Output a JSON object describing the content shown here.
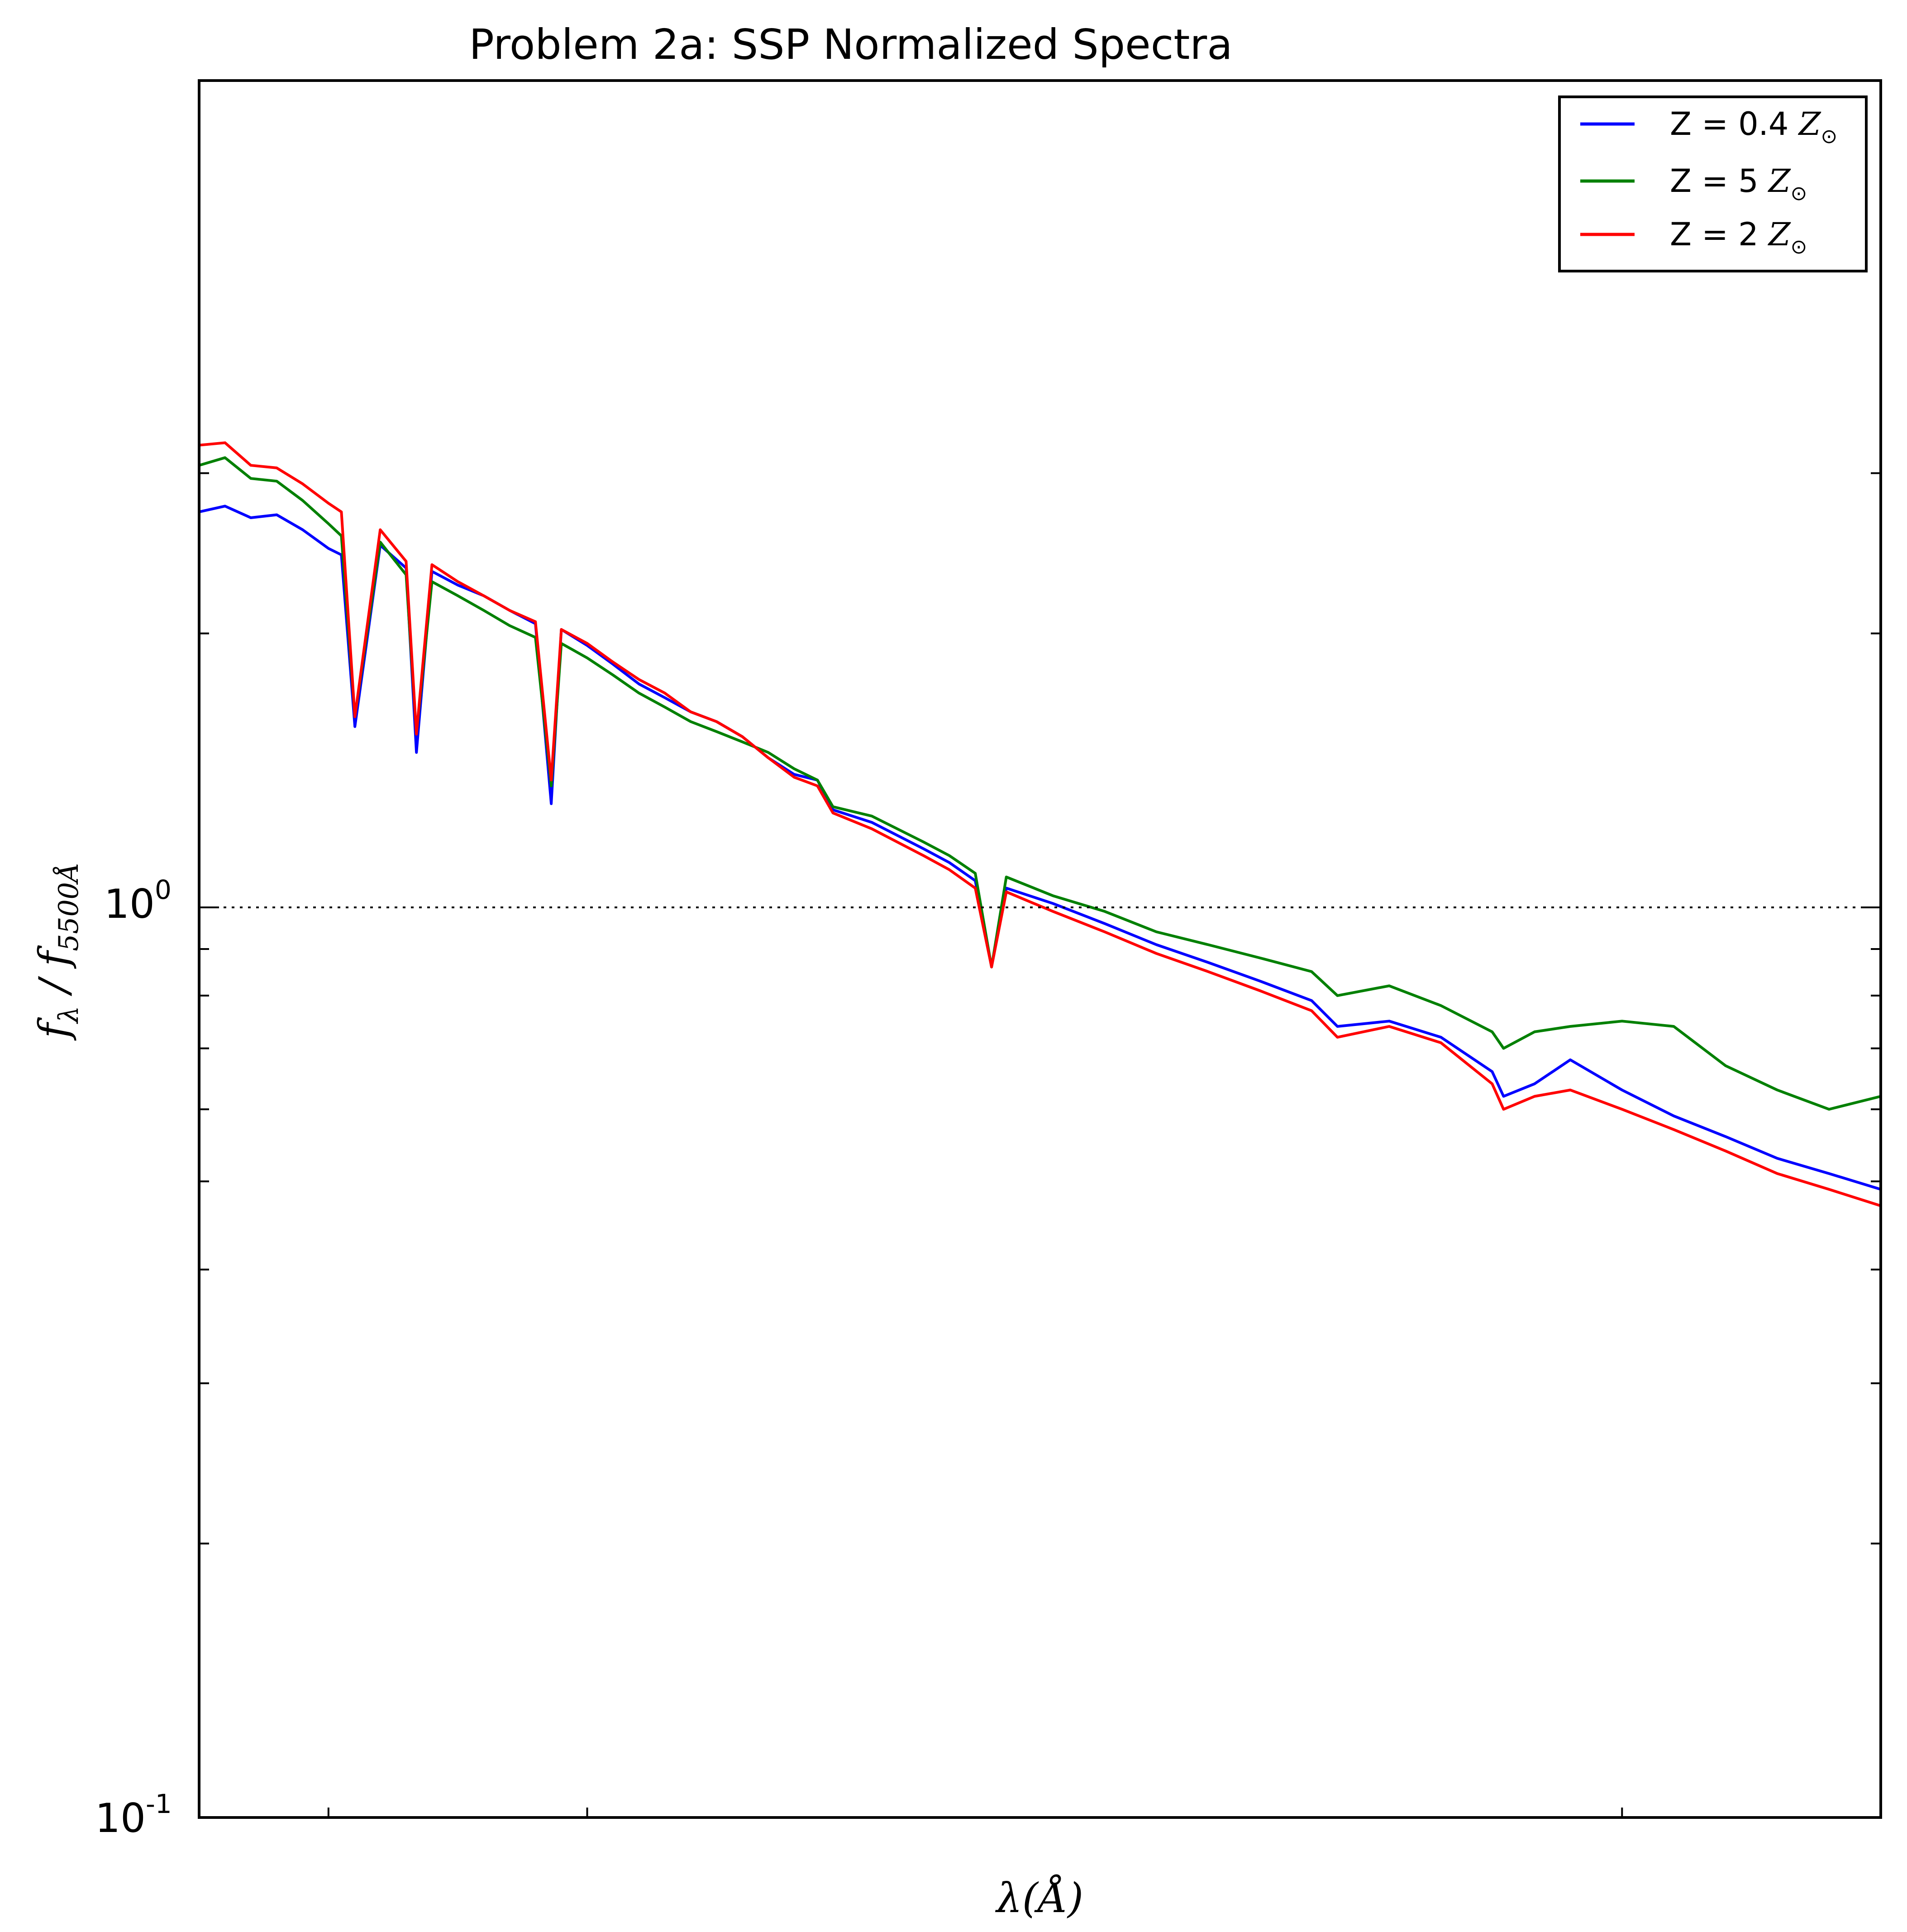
{
  "chart_data": {
    "type": "line",
    "title": "Problem 2a: SSP Normalized Spectra",
    "xlabel": "λ(Å)",
    "ylabel": "f_λ / f_5500Å",
    "ylabel_main": "f",
    "ylabel_sub1": "λ",
    "ylabel_sep": " / f",
    "ylabel_sub2": "5500Å",
    "y_scale": "log",
    "ylim": [
      0.1,
      3.9
    ],
    "xlim": [
      3500,
      10000
    ],
    "y_tick_labels": [
      {
        "value": 1.0,
        "base": "10",
        "exp": "0"
      },
      {
        "value": 0.1,
        "base": "10",
        "exp": "-1"
      }
    ],
    "x_tick_labels": [],
    "reference_line": {
      "y": 1.0,
      "style": "dotted"
    },
    "grid": false,
    "legend_position": "top-right",
    "series": [
      {
        "name": "Z = 0.4 Z⊙",
        "name_prefix": "Z = 0.4 ",
        "name_math": "Z",
        "name_sub": "⊙",
        "color": "#0000ff",
        "points": [
          [
            3500,
            2.72
          ],
          [
            3600,
            2.76
          ],
          [
            3700,
            2.68
          ],
          [
            3800,
            2.7
          ],
          [
            3900,
            2.6
          ],
          [
            4000,
            2.48
          ],
          [
            4050,
            2.44
          ],
          [
            4102,
            1.58
          ],
          [
            4200,
            2.5
          ],
          [
            4300,
            2.36
          ],
          [
            4340,
            1.48
          ],
          [
            4400,
            2.34
          ],
          [
            4500,
            2.26
          ],
          [
            4600,
            2.2
          ],
          [
            4700,
            2.12
          ],
          [
            4800,
            2.05
          ],
          [
            4861,
            1.3
          ],
          [
            4900,
            2.02
          ],
          [
            5000,
            1.94
          ],
          [
            5100,
            1.85
          ],
          [
            5200,
            1.76
          ],
          [
            5300,
            1.7
          ],
          [
            5400,
            1.64
          ],
          [
            5500,
            1.6
          ],
          [
            5600,
            1.54
          ],
          [
            5700,
            1.46
          ],
          [
            5800,
            1.4
          ],
          [
            5890,
            1.38
          ],
          [
            5950,
            1.28
          ],
          [
            6100,
            1.24
          ],
          [
            6300,
            1.16
          ],
          [
            6400,
            1.12
          ],
          [
            6500,
            1.07
          ],
          [
            6563,
            0.86
          ],
          [
            6620,
            1.05
          ],
          [
            6800,
            1.01
          ],
          [
            7000,
            0.96
          ],
          [
            7200,
            0.91
          ],
          [
            7400,
            0.87
          ],
          [
            7600,
            0.83
          ],
          [
            7800,
            0.79
          ],
          [
            7900,
            0.74
          ],
          [
            8100,
            0.75
          ],
          [
            8300,
            0.72
          ],
          [
            8498,
            0.66
          ],
          [
            8542,
            0.62
          ],
          [
            8662,
            0.64
          ],
          [
            8800,
            0.68
          ],
          [
            9000,
            0.63
          ],
          [
            9200,
            0.59
          ],
          [
            9400,
            0.56
          ],
          [
            9600,
            0.53
          ],
          [
            9800,
            0.51
          ],
          [
            10000,
            0.49
          ]
        ]
      },
      {
        "name": "Z = 5 Z⊙",
        "name_prefix": "Z = 5 ",
        "name_math": "Z",
        "name_sub": "⊙",
        "color": "#008000",
        "points": [
          [
            3500,
            3.06
          ],
          [
            3600,
            3.12
          ],
          [
            3700,
            2.96
          ],
          [
            3800,
            2.94
          ],
          [
            3900,
            2.8
          ],
          [
            4000,
            2.64
          ],
          [
            4050,
            2.56
          ],
          [
            4102,
            1.62
          ],
          [
            4200,
            2.52
          ],
          [
            4300,
            2.32
          ],
          [
            4340,
            1.55
          ],
          [
            4400,
            2.28
          ],
          [
            4500,
            2.2
          ],
          [
            4600,
            2.12
          ],
          [
            4700,
            2.04
          ],
          [
            4800,
            1.98
          ],
          [
            4861,
            1.36
          ],
          [
            4900,
            1.95
          ],
          [
            5000,
            1.88
          ],
          [
            5100,
            1.8
          ],
          [
            5200,
            1.72
          ],
          [
            5300,
            1.66
          ],
          [
            5400,
            1.6
          ],
          [
            5500,
            1.56
          ],
          [
            5600,
            1.52
          ],
          [
            5700,
            1.48
          ],
          [
            5800,
            1.42
          ],
          [
            5890,
            1.38
          ],
          [
            5950,
            1.29
          ],
          [
            6100,
            1.26
          ],
          [
            6300,
            1.18
          ],
          [
            6400,
            1.14
          ],
          [
            6500,
            1.09
          ],
          [
            6563,
            0.86
          ],
          [
            6620,
            1.08
          ],
          [
            6800,
            1.03
          ],
          [
            7000,
            0.99
          ],
          [
            7200,
            0.94
          ],
          [
            7400,
            0.91
          ],
          [
            7600,
            0.88
          ],
          [
            7800,
            0.85
          ],
          [
            7900,
            0.8
          ],
          [
            8100,
            0.82
          ],
          [
            8300,
            0.78
          ],
          [
            8498,
            0.73
          ],
          [
            8542,
            0.7
          ],
          [
            8662,
            0.73
          ],
          [
            8800,
            0.74
          ],
          [
            9000,
            0.75
          ],
          [
            9200,
            0.74
          ],
          [
            9400,
            0.67
          ],
          [
            9600,
            0.63
          ],
          [
            9800,
            0.6
          ],
          [
            10000,
            0.62
          ]
        ]
      },
      {
        "name": "Z = 2 Z⊙",
        "name_prefix": "Z = 2 ",
        "name_math": "Z",
        "name_sub": "⊙",
        "color": "#ff0000",
        "points": [
          [
            3500,
            3.22
          ],
          [
            3600,
            3.24
          ],
          [
            3700,
            3.06
          ],
          [
            3800,
            3.04
          ],
          [
            3900,
            2.92
          ],
          [
            4000,
            2.78
          ],
          [
            4050,
            2.72
          ],
          [
            4102,
            1.62
          ],
          [
            4200,
            2.6
          ],
          [
            4300,
            2.4
          ],
          [
            4340,
            1.55
          ],
          [
            4400,
            2.38
          ],
          [
            4500,
            2.28
          ],
          [
            4600,
            2.2
          ],
          [
            4700,
            2.12
          ],
          [
            4800,
            2.06
          ],
          [
            4861,
            1.38
          ],
          [
            4900,
            2.02
          ],
          [
            5000,
            1.95
          ],
          [
            5100,
            1.86
          ],
          [
            5200,
            1.78
          ],
          [
            5300,
            1.72
          ],
          [
            5400,
            1.64
          ],
          [
            5500,
            1.6
          ],
          [
            5600,
            1.54
          ],
          [
            5700,
            1.46
          ],
          [
            5800,
            1.39
          ],
          [
            5890,
            1.36
          ],
          [
            5950,
            1.27
          ],
          [
            6100,
            1.22
          ],
          [
            6300,
            1.14
          ],
          [
            6400,
            1.1
          ],
          [
            6500,
            1.05
          ],
          [
            6563,
            0.86
          ],
          [
            6620,
            1.04
          ],
          [
            6800,
            0.99
          ],
          [
            7000,
            0.94
          ],
          [
            7200,
            0.89
          ],
          [
            7400,
            0.85
          ],
          [
            7600,
            0.81
          ],
          [
            7800,
            0.77
          ],
          [
            7900,
            0.72
          ],
          [
            8100,
            0.74
          ],
          [
            8300,
            0.71
          ],
          [
            8498,
            0.64
          ],
          [
            8542,
            0.6
          ],
          [
            8662,
            0.62
          ],
          [
            8800,
            0.63
          ],
          [
            9000,
            0.6
          ],
          [
            9200,
            0.57
          ],
          [
            9400,
            0.54
          ],
          [
            9600,
            0.51
          ],
          [
            9800,
            0.49
          ],
          [
            10000,
            0.47
          ]
        ]
      }
    ]
  }
}
